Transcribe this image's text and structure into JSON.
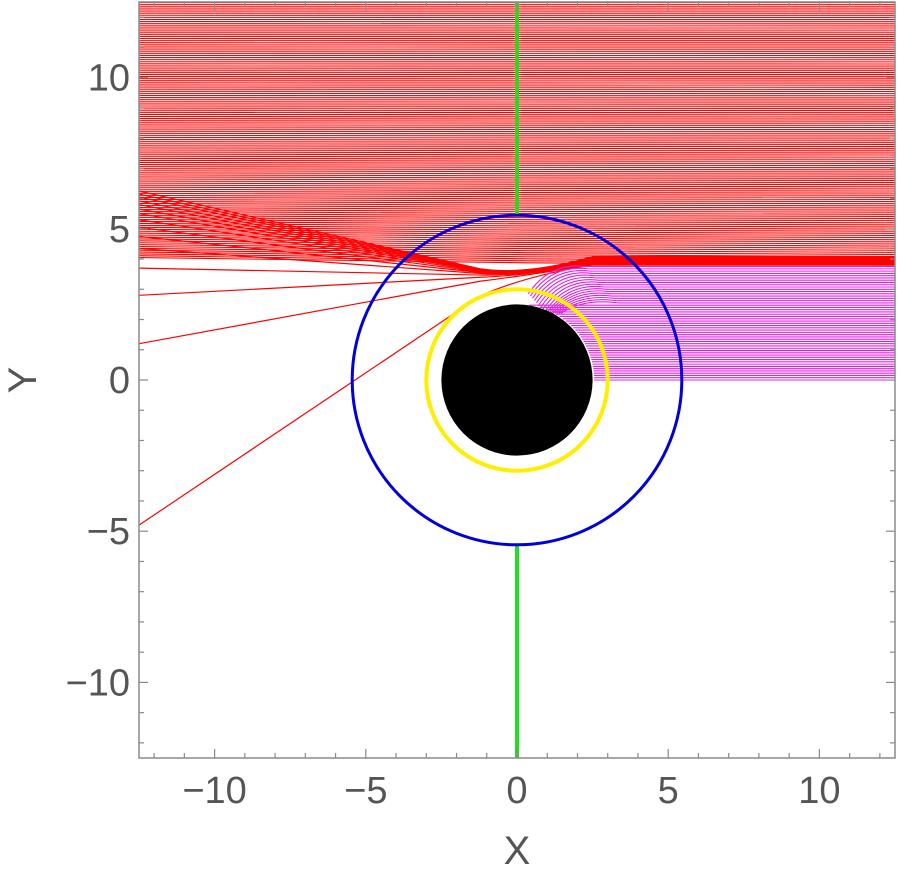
{
  "chart_data": {
    "type": "line",
    "title": "",
    "xlabel": "X",
    "ylabel": "Y",
    "xlim": [
      -12.5,
      12.5
    ],
    "ylim": [
      -12.5,
      12.5
    ],
    "x_ticks": [
      -10,
      -5,
      0,
      5,
      10
    ],
    "y_ticks": [
      -10,
      -5,
      0,
      5,
      10
    ],
    "x_tick_labels": [
      "−10",
      "−5",
      "0",
      "5",
      "10"
    ],
    "y_tick_labels": [
      "−10",
      "−5",
      "0",
      "5",
      "10"
    ],
    "grid": false,
    "colors": {
      "rays_escaping": "#ff0000",
      "rays_captured": "#e020e0",
      "axis_lines": "#22dd22",
      "outer_circle": "#0000dd",
      "inner_circle": "#ffee00",
      "shadow": "#000000"
    },
    "elements": {
      "shadow_disk_radius": 2.5,
      "inner_circle_radius": 3.0,
      "outer_circle_radius": 5.45,
      "vertical_line_upper": [
        5.45,
        12.5
      ],
      "vertical_line_lower": [
        -12.5,
        -5.45
      ]
    },
    "captured_rays": {
      "impact_parameter_min": 0.0,
      "impact_parameter_max": 3.8
    },
    "escaping_rays": {
      "impact_parameter_min": 3.8,
      "impact_parameter_max": 12.5
    },
    "left_edge_exit_y": [
      -4.8,
      1.2,
      2.8,
      3.7,
      4.35,
      4.75,
      5.05,
      5.3,
      5.5,
      5.65,
      5.8,
      5.92,
      6.05,
      6.15,
      6.25
    ]
  }
}
